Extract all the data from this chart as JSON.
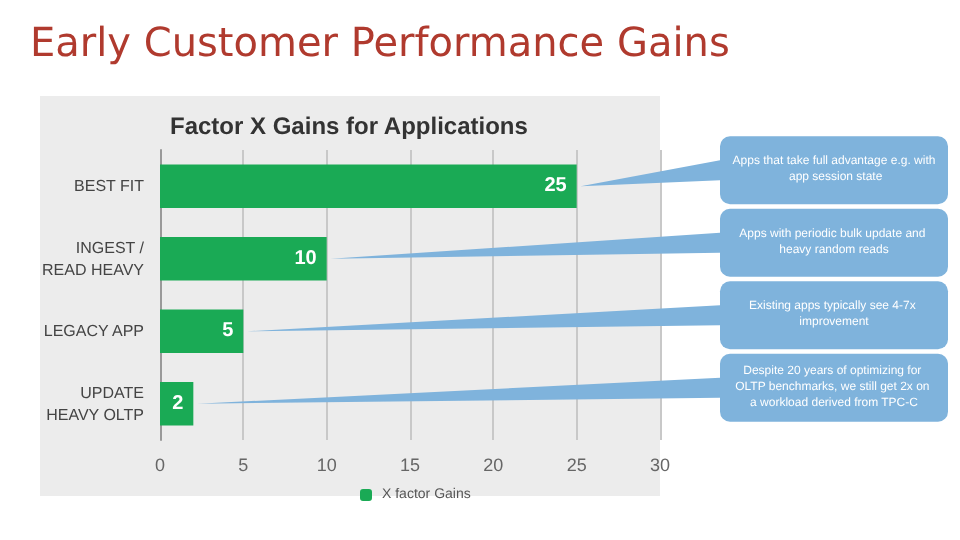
{
  "chart_data": {
    "type": "bar",
    "orientation": "horizontal",
    "title": "Early Customer Performance Gains",
    "subtitle": "Factor X Gains for Applications",
    "categories": [
      "BEST FIT",
      "INGEST /\nREAD HEAVY",
      "LEGACY APP",
      "UPDATE\nHEAVY OLTP"
    ],
    "series": [
      {
        "name": "X factor Gains",
        "color": "#1aaa55",
        "values": [
          25,
          10,
          5,
          2
        ]
      }
    ],
    "xlim": [
      0,
      30
    ],
    "xticks": [
      0,
      5,
      10,
      15,
      20,
      25,
      30
    ],
    "grid": "x",
    "legend": "bottom",
    "data_labels": true,
    "annotations": [
      "Apps that take full advantage e.g. with app session state",
      "Apps with periodic bulk update and heavy random reads",
      "Existing apps typically see 4-7x improvement",
      "Despite 20 years of optimizing for OLTP benchmarks, we still get 2x on a workload derived from TPC-C"
    ]
  }
}
